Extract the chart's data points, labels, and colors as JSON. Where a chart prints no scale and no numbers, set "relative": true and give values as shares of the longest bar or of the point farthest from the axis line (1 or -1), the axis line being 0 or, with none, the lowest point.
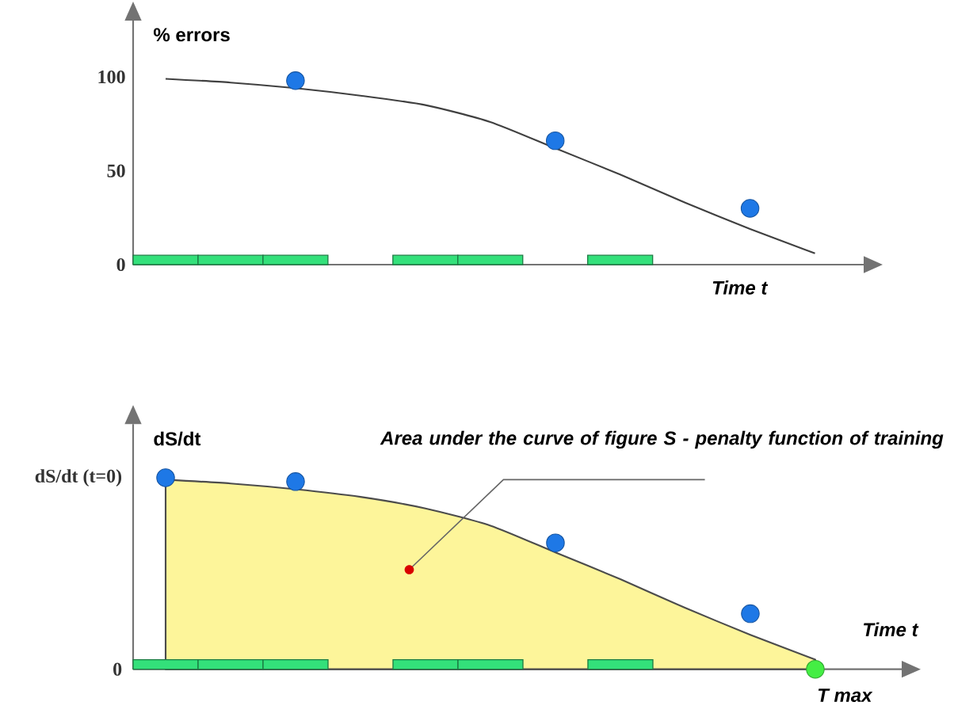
{
  "chart_data": [
    {
      "type": "line",
      "ylabel": "% errors",
      "xlabel": "Time t",
      "categories": [
        null,
        null,
        null,
        null,
        null,
        null,
        null,
        null,
        null,
        null,
        null
      ],
      "ylim": [
        0,
        130
      ],
      "yticks": [
        0,
        50,
        100
      ],
      "tick_labels": "y",
      "series": [
        {
          "color": "#404040",
          "values": [
            99,
            97,
            94,
            90,
            85,
            76,
            62,
            48,
            33,
            19,
            6
          ]
        },
        {
          "type": "scatter",
          "color": "#1e78e6",
          "values": [
            null,
            null,
            98,
            null,
            null,
            null,
            66,
            null,
            null,
            30,
            null
          ]
        },
        {
          "type": "bar",
          "color": "#33e07a",
          "values": [
            5,
            5,
            5,
            null,
            5,
            5,
            null,
            5,
            null,
            null,
            null
          ]
        }
      ]
    },
    {
      "type": "area",
      "ylabel": "dS/dt",
      "xlabel": "Time t",
      "categories": [
        null,
        null,
        null,
        null,
        null,
        null,
        null,
        null,
        null,
        null,
        null
      ],
      "relative": true,
      "tick_labels": false,
      "annotations": [
        "Area under the curve of figure S - penalty function of training",
        "T max",
        "dS/dt (t=0)",
        "0"
      ],
      "series": [
        {
          "color": "#fdf59a",
          "values": [
            0.99,
            0.97,
            0.94,
            0.9,
            0.84,
            0.75,
            0.61,
            0.47,
            0.32,
            0.18,
            0.05
          ]
        },
        {
          "type": "scatter",
          "color": "#1e78e6",
          "values": [
            1.0,
            null,
            0.98,
            null,
            null,
            null,
            0.66,
            null,
            null,
            0.29,
            null
          ]
        },
        {
          "type": "scatter",
          "color": "#44ee44",
          "values": [
            null,
            null,
            null,
            null,
            null,
            null,
            null,
            null,
            null,
            null,
            0
          ]
        },
        {
          "type": "bar",
          "color": "#33e07a",
          "values": [
            0.05,
            0.05,
            0.05,
            null,
            0.05,
            0.05,
            null,
            0.05,
            null,
            null,
            null
          ]
        }
      ]
    }
  ]
}
